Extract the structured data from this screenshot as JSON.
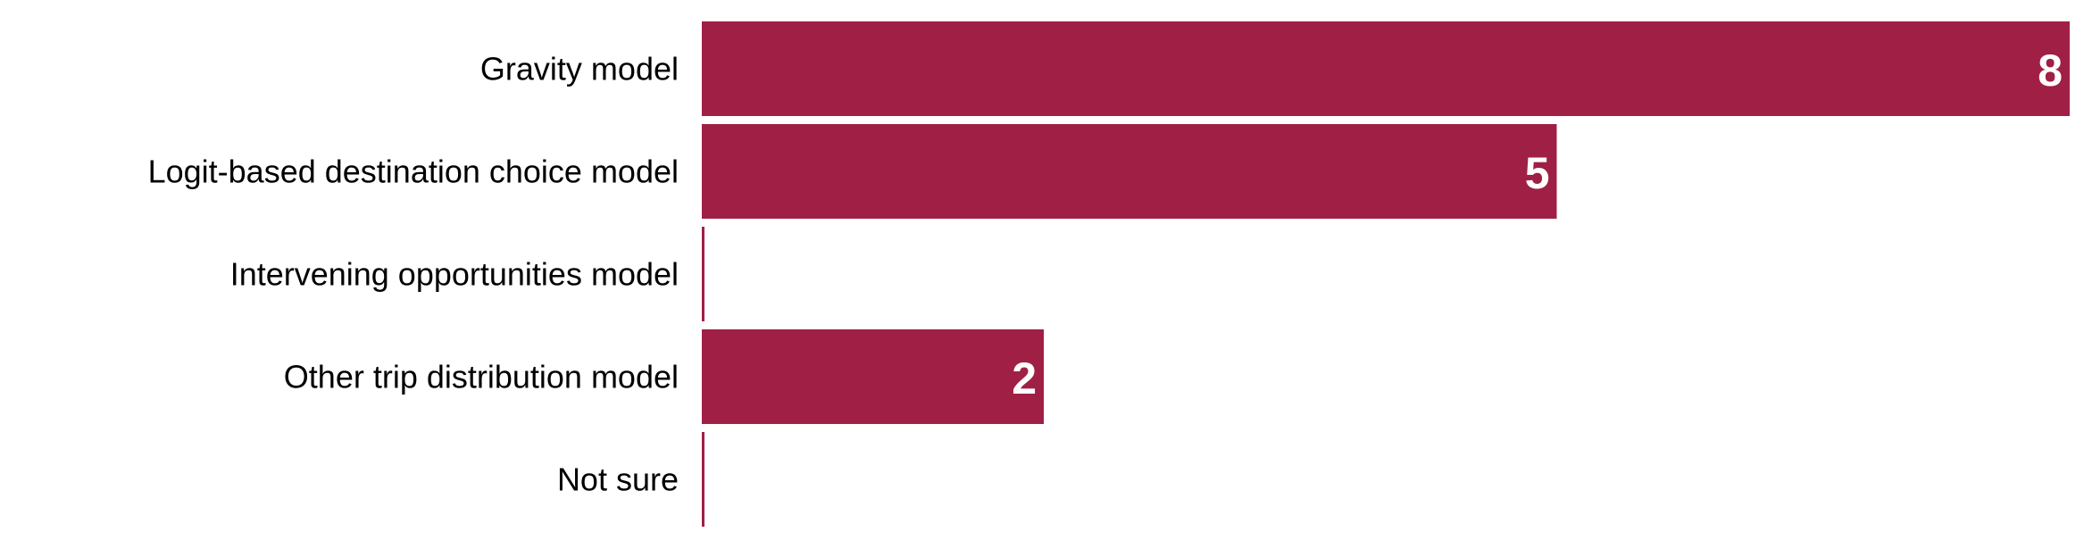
{
  "colors": {
    "bar": "#A01F45",
    "background": "#FFFFFF",
    "label_text": "#000000",
    "value_text": "#FFFFFF"
  },
  "chart_data": {
    "type": "bar",
    "orientation": "horizontal",
    "categories": [
      "Gravity model",
      "Logit-based destination choice model",
      "Intervening opportunities model",
      "Other trip distribution model",
      "Not sure"
    ],
    "values": [
      8,
      5,
      0,
      2,
      0
    ],
    "data_labels": [
      "8",
      "5",
      "",
      "2",
      ""
    ],
    "xlim": [
      0,
      8
    ],
    "grid": false,
    "legend": "none"
  }
}
